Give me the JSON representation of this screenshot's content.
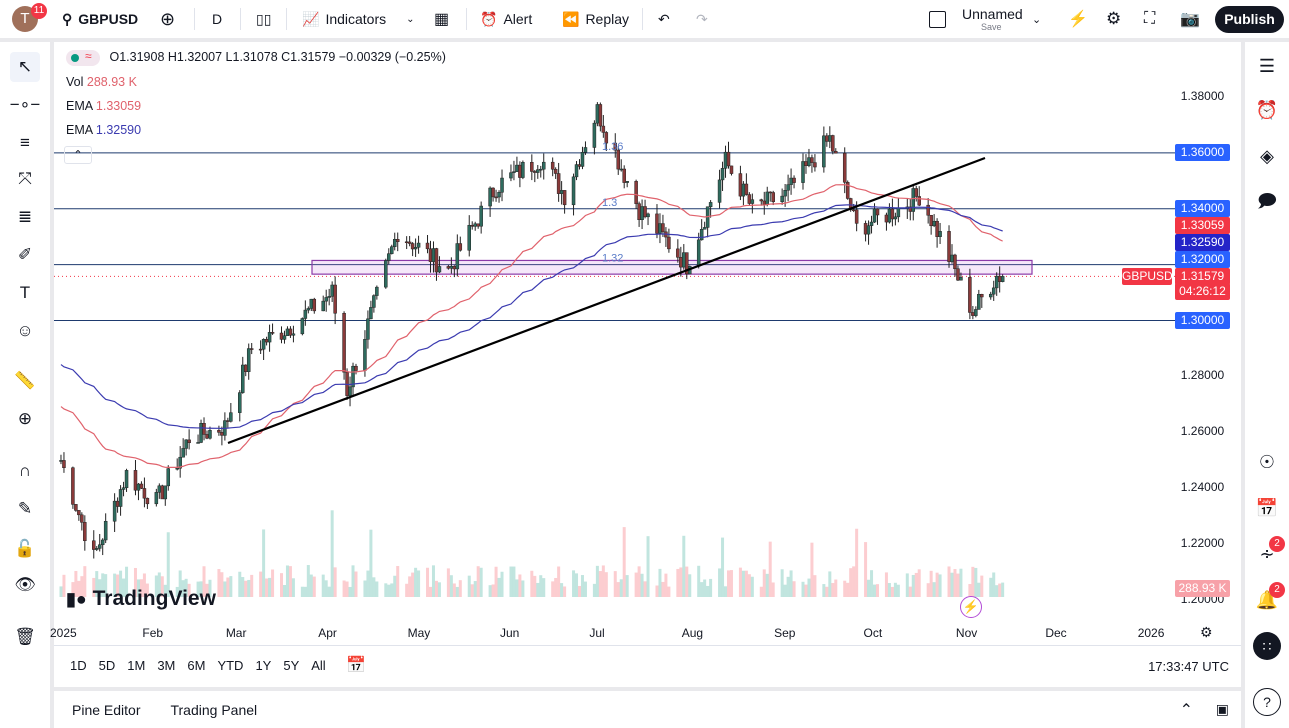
{
  "topbar": {
    "avatar_letter": "T",
    "notifications": "11",
    "symbol": "GBPUSD",
    "interval": "D",
    "indicators": "Indicators",
    "alert": "Alert",
    "replay": "Replay",
    "layout_name": "Unnamed",
    "layout_save": "Save",
    "publish": "Publish"
  },
  "legend": {
    "ohlc": "O1.31908 H1.32007 L1.31078 C1.31579 −0.00329 (−0.25%)",
    "vol_label": "Vol",
    "vol_value": "288.93 K",
    "ema1_label": "EMA",
    "ema1_value": "1.33059",
    "ema2_label": "EMA",
    "ema2_value": "1.32590"
  },
  "price_axis": {
    "ticks": [
      "1.38000",
      "1.28000",
      "1.26000",
      "1.24000",
      "1.22000",
      "1.20000"
    ],
    "labels": {
      "l136": "1.36000",
      "l134": "1.34000",
      "ema1": "1.33059",
      "ema2": "1.32590",
      "l132": "1.32000",
      "cur": "1.31579",
      "countdown": "04:26:12",
      "l130": "1.30000",
      "vol": "288.93 K",
      "symbol": "GBPUSD"
    }
  },
  "time_axis": [
    "2025",
    "Feb",
    "Mar",
    "Apr",
    "May",
    "Jun",
    "Jul",
    "Aug",
    "Sep",
    "Oct",
    "Nov",
    "Dec",
    "2026"
  ],
  "drawings": {
    "fib_136": "1.36",
    "fib_134": "1.3",
    "fib_132": "1.32"
  },
  "ranges": [
    "1D",
    "5D",
    "1M",
    "3M",
    "6M",
    "YTD",
    "1Y",
    "5Y",
    "All"
  ],
  "clock": "17:33:47 UTC",
  "bottom_tabs": [
    "Pine Editor",
    "Trading Panel"
  ],
  "watermark": "TradingView",
  "right_badges": {
    "ideas": "2",
    "alerts": "2"
  },
  "colors": {
    "up": "#089981",
    "down": "#f23645",
    "ema50": "#e0626c",
    "ema200": "#3b3bb0",
    "hline": "#2962ff",
    "accent": "#2962ff"
  },
  "chart_data": {
    "type": "candlestick",
    "symbol": "GBPUSD",
    "interval": "D",
    "approx_close_path": [
      [
        "2025-01-02",
        1.25
      ],
      [
        "2025-01-13",
        1.215
      ],
      [
        "2025-01-24",
        1.245
      ],
      [
        "2025-02-03",
        1.235
      ],
      [
        "2025-02-14",
        1.258
      ],
      [
        "2025-02-26",
        1.262
      ],
      [
        "2025-03-07",
        1.29
      ],
      [
        "2025-03-20",
        1.298
      ],
      [
        "2025-04-03",
        1.31
      ],
      [
        "2025-04-08",
        1.275
      ],
      [
        "2025-04-25",
        1.332
      ],
      [
        "2025-05-12",
        1.318
      ],
      [
        "2025-05-28",
        1.348
      ],
      [
        "2025-06-12",
        1.358
      ],
      [
        "2025-06-20",
        1.345
      ],
      [
        "2025-07-01",
        1.375
      ],
      [
        "2025-07-15",
        1.34
      ],
      [
        "2025-07-31",
        1.32
      ],
      [
        "2025-08-13",
        1.357
      ],
      [
        "2025-08-22",
        1.34
      ],
      [
        "2025-09-02",
        1.345
      ],
      [
        "2025-09-17",
        1.365
      ],
      [
        "2025-09-26",
        1.333
      ],
      [
        "2025-10-10",
        1.34
      ],
      [
        "2025-10-17",
        1.345
      ],
      [
        "2025-10-24",
        1.33
      ],
      [
        "2025-11-04",
        1.303
      ],
      [
        "2025-11-12",
        1.316
      ],
      [
        "2025-11-14",
        1.3158
      ]
    ],
    "horizontal_levels": [
      1.36,
      1.34,
      1.32,
      1.3
    ],
    "zone": [
      1.3166,
      1.3215
    ],
    "ema_values": [
      1.33059,
      1.3259
    ],
    "ylim": [
      1.2,
      1.38
    ]
  }
}
